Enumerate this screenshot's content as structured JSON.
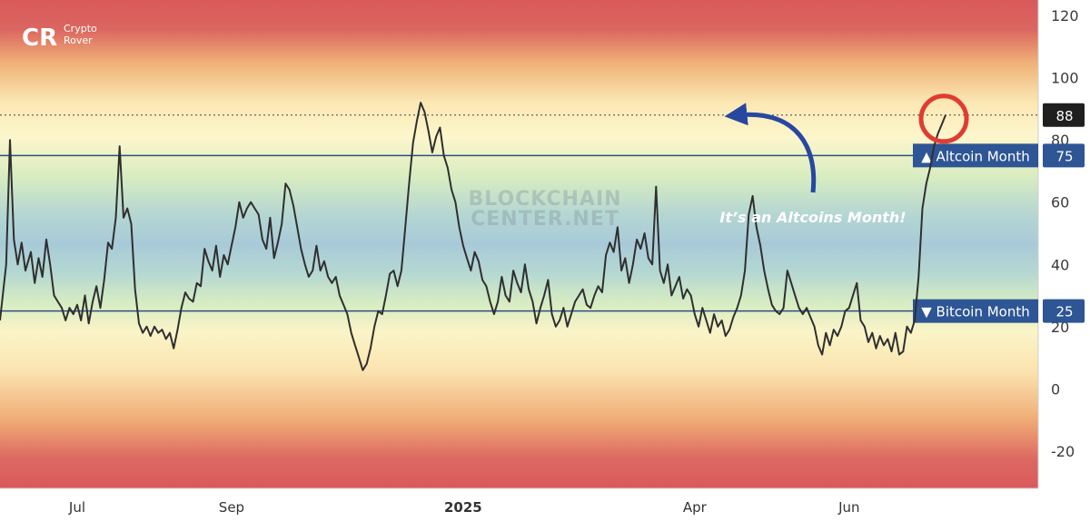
{
  "brand": {
    "line1": "Crypto",
    "line2": "Rover",
    "logo_text": "CR"
  },
  "watermark": {
    "line1": "BLOCKCHAIN",
    "line2": "CENTER.NET"
  },
  "annotation": "It’s an Altcoins Month!",
  "colors": {
    "line": "#2f2f2f",
    "level_line": "#2e4f82",
    "label_bg": "#2e5594",
    "badge_bg": "#1f1f1f",
    "circle": "#e03c31",
    "arrow": "#2747a0"
  },
  "chart_data": {
    "type": "line",
    "title": "",
    "xlabel": "",
    "ylabel": "",
    "ylim": [
      -32,
      125
    ],
    "y_ticks": [
      -20,
      0,
      20,
      40,
      60,
      80,
      100,
      120
    ],
    "x_ticks": [
      {
        "label": "Jul",
        "bold": false,
        "x": 1
      },
      {
        "label": "Sep",
        "bold": false,
        "x": 3
      },
      {
        "label": "2025",
        "bold": true,
        "x": 6
      },
      {
        "label": "Apr",
        "bold": false,
        "x": 9
      },
      {
        "label": "Jun",
        "bold": false,
        "x": 11
      }
    ],
    "xlim": [
      0.0,
      13.45
    ],
    "levels": [
      {
        "name": "Altcoin Month",
        "symbol": "▲",
        "value": 75
      },
      {
        "name": "Bitcoin Month",
        "symbol": "▼",
        "value": 25
      }
    ],
    "current": {
      "value": 88,
      "label": "88"
    },
    "series": [
      {
        "values": [
          [
            0.0,
            22
          ],
          [
            0.08,
            40
          ],
          [
            0.13,
            80
          ],
          [
            0.18,
            48
          ],
          [
            0.23,
            40
          ],
          [
            0.28,
            47
          ],
          [
            0.33,
            38
          ],
          [
            0.4,
            44
          ],
          [
            0.45,
            34
          ],
          [
            0.5,
            42
          ],
          [
            0.55,
            36
          ],
          [
            0.6,
            48
          ],
          [
            0.65,
            40
          ],
          [
            0.7,
            30
          ],
          [
            0.75,
            28
          ],
          [
            0.8,
            26
          ],
          [
            0.85,
            22
          ],
          [
            0.9,
            26
          ],
          [
            0.95,
            24
          ],
          [
            1.0,
            27
          ],
          [
            1.05,
            22
          ],
          [
            1.1,
            30
          ],
          [
            1.15,
            21
          ],
          [
            1.2,
            28
          ],
          [
            1.25,
            33
          ],
          [
            1.3,
            26
          ],
          [
            1.35,
            35
          ],
          [
            1.4,
            47
          ],
          [
            1.45,
            45
          ],
          [
            1.5,
            55
          ],
          [
            1.55,
            78
          ],
          [
            1.6,
            55
          ],
          [
            1.65,
            58
          ],
          [
            1.7,
            53
          ],
          [
            1.75,
            32
          ],
          [
            1.8,
            21
          ],
          [
            1.85,
            18
          ],
          [
            1.9,
            20
          ],
          [
            1.95,
            17
          ],
          [
            2.0,
            20
          ],
          [
            2.05,
            18
          ],
          [
            2.1,
            19
          ],
          [
            2.15,
            16
          ],
          [
            2.2,
            18
          ],
          [
            2.25,
            13
          ],
          [
            2.3,
            19
          ],
          [
            2.35,
            26
          ],
          [
            2.4,
            31
          ],
          [
            2.45,
            29
          ],
          [
            2.5,
            28
          ],
          [
            2.55,
            34
          ],
          [
            2.6,
            33
          ],
          [
            2.65,
            45
          ],
          [
            2.7,
            41
          ],
          [
            2.75,
            38
          ],
          [
            2.8,
            46
          ],
          [
            2.85,
            36
          ],
          [
            2.9,
            43
          ],
          [
            2.95,
            40
          ],
          [
            3.0,
            46
          ],
          [
            3.05,
            52
          ],
          [
            3.1,
            60
          ],
          [
            3.15,
            55
          ],
          [
            3.2,
            58
          ],
          [
            3.25,
            60
          ],
          [
            3.3,
            58
          ],
          [
            3.35,
            56
          ],
          [
            3.4,
            48
          ],
          [
            3.45,
            45
          ],
          [
            3.5,
            55
          ],
          [
            3.55,
            42
          ],
          [
            3.6,
            47
          ],
          [
            3.65,
            53
          ],
          [
            3.7,
            66
          ],
          [
            3.75,
            64
          ],
          [
            3.8,
            59
          ],
          [
            3.85,
            52
          ],
          [
            3.9,
            45
          ],
          [
            3.95,
            40
          ],
          [
            4.0,
            36
          ],
          [
            4.05,
            38
          ],
          [
            4.1,
            46
          ],
          [
            4.15,
            38
          ],
          [
            4.2,
            41
          ],
          [
            4.25,
            36
          ],
          [
            4.3,
            34
          ],
          [
            4.35,
            36
          ],
          [
            4.4,
            30
          ],
          [
            4.45,
            27
          ],
          [
            4.5,
            24
          ],
          [
            4.55,
            18
          ],
          [
            4.6,
            14
          ],
          [
            4.65,
            10
          ],
          [
            4.7,
            6
          ],
          [
            4.75,
            8
          ],
          [
            4.8,
            13
          ],
          [
            4.85,
            20
          ],
          [
            4.9,
            25
          ],
          [
            4.95,
            24
          ],
          [
            5.0,
            30
          ],
          [
            5.05,
            37
          ],
          [
            5.1,
            38
          ],
          [
            5.15,
            33
          ],
          [
            5.2,
            38
          ],
          [
            5.25,
            52
          ],
          [
            5.3,
            66
          ],
          [
            5.35,
            79
          ],
          [
            5.4,
            86
          ],
          [
            5.45,
            92
          ],
          [
            5.5,
            89
          ],
          [
            5.55,
            83
          ],
          [
            5.6,
            76
          ],
          [
            5.65,
            81
          ],
          [
            5.7,
            84
          ],
          [
            5.75,
            75
          ],
          [
            5.8,
            71
          ],
          [
            5.85,
            64
          ],
          [
            5.9,
            60
          ],
          [
            5.95,
            52
          ],
          [
            6.0,
            46
          ],
          [
            6.05,
            42
          ],
          [
            6.1,
            38
          ],
          [
            6.15,
            44
          ],
          [
            6.2,
            41
          ],
          [
            6.25,
            35
          ],
          [
            6.3,
            33
          ],
          [
            6.35,
            28
          ],
          [
            6.4,
            24
          ],
          [
            6.45,
            28
          ],
          [
            6.5,
            36
          ],
          [
            6.55,
            30
          ],
          [
            6.6,
            28
          ],
          [
            6.65,
            38
          ],
          [
            6.7,
            34
          ],
          [
            6.75,
            31
          ],
          [
            6.8,
            40
          ],
          [
            6.85,
            32
          ],
          [
            6.9,
            28
          ],
          [
            6.95,
            21
          ],
          [
            7.0,
            26
          ],
          [
            7.05,
            30
          ],
          [
            7.1,
            35
          ],
          [
            7.15,
            24
          ],
          [
            7.2,
            20
          ],
          [
            7.25,
            22
          ],
          [
            7.3,
            26
          ],
          [
            7.35,
            20
          ],
          [
            7.4,
            24
          ],
          [
            7.45,
            28
          ],
          [
            7.5,
            30
          ],
          [
            7.55,
            32
          ],
          [
            7.6,
            27
          ],
          [
            7.65,
            26
          ],
          [
            7.7,
            30
          ],
          [
            7.75,
            33
          ],
          [
            7.8,
            31
          ],
          [
            7.85,
            43
          ],
          [
            7.9,
            47
          ],
          [
            7.95,
            44
          ],
          [
            8.0,
            52
          ],
          [
            8.05,
            38
          ],
          [
            8.1,
            42
          ],
          [
            8.15,
            34
          ],
          [
            8.2,
            40
          ],
          [
            8.25,
            48
          ],
          [
            8.3,
            45
          ],
          [
            8.35,
            50
          ],
          [
            8.4,
            42
          ],
          [
            8.45,
            40
          ],
          [
            8.5,
            65
          ],
          [
            8.55,
            38
          ],
          [
            8.6,
            34
          ],
          [
            8.65,
            40
          ],
          [
            8.7,
            30
          ],
          [
            8.75,
            33
          ],
          [
            8.8,
            36
          ],
          [
            8.85,
            29
          ],
          [
            8.9,
            32
          ],
          [
            8.95,
            30
          ],
          [
            9.0,
            24
          ],
          [
            9.05,
            20
          ],
          [
            9.1,
            26
          ],
          [
            9.15,
            22
          ],
          [
            9.2,
            18
          ],
          [
            9.25,
            24
          ],
          [
            9.3,
            20
          ],
          [
            9.35,
            22
          ],
          [
            9.4,
            17
          ],
          [
            9.45,
            19
          ],
          [
            9.5,
            23
          ],
          [
            9.55,
            26
          ],
          [
            9.6,
            30
          ],
          [
            9.65,
            38
          ],
          [
            9.7,
            56
          ],
          [
            9.75,
            62
          ],
          [
            9.8,
            52
          ],
          [
            9.85,
            46
          ],
          [
            9.9,
            38
          ],
          [
            9.95,
            32
          ],
          [
            10.0,
            27
          ],
          [
            10.05,
            25
          ],
          [
            10.1,
            24
          ],
          [
            10.15,
            26
          ],
          [
            10.2,
            38
          ],
          [
            10.25,
            34
          ],
          [
            10.3,
            30
          ],
          [
            10.35,
            26
          ],
          [
            10.4,
            24
          ],
          [
            10.45,
            26
          ],
          [
            10.5,
            23
          ],
          [
            10.55,
            20
          ],
          [
            10.6,
            14
          ],
          [
            10.65,
            11
          ],
          [
            10.7,
            18
          ],
          [
            10.75,
            14
          ],
          [
            10.8,
            19
          ],
          [
            10.85,
            17
          ],
          [
            10.9,
            20
          ],
          [
            10.95,
            25
          ],
          [
            11.0,
            26
          ],
          [
            11.05,
            30
          ],
          [
            11.1,
            34
          ],
          [
            11.15,
            22
          ],
          [
            11.2,
            20
          ],
          [
            11.25,
            15
          ],
          [
            11.3,
            18
          ],
          [
            11.35,
            13
          ],
          [
            11.4,
            17
          ],
          [
            11.45,
            14
          ],
          [
            11.5,
            16
          ],
          [
            11.55,
            12
          ],
          [
            11.6,
            18
          ],
          [
            11.65,
            11
          ],
          [
            11.7,
            12
          ],
          [
            11.75,
            20
          ],
          [
            11.8,
            18
          ],
          [
            11.85,
            22
          ],
          [
            11.9,
            36
          ],
          [
            11.95,
            58
          ],
          [
            12.0,
            66
          ],
          [
            12.05,
            71
          ],
          [
            12.1,
            78
          ],
          [
            12.15,
            82
          ],
          [
            12.2,
            85
          ],
          [
            12.25,
            88
          ]
        ]
      }
    ]
  }
}
